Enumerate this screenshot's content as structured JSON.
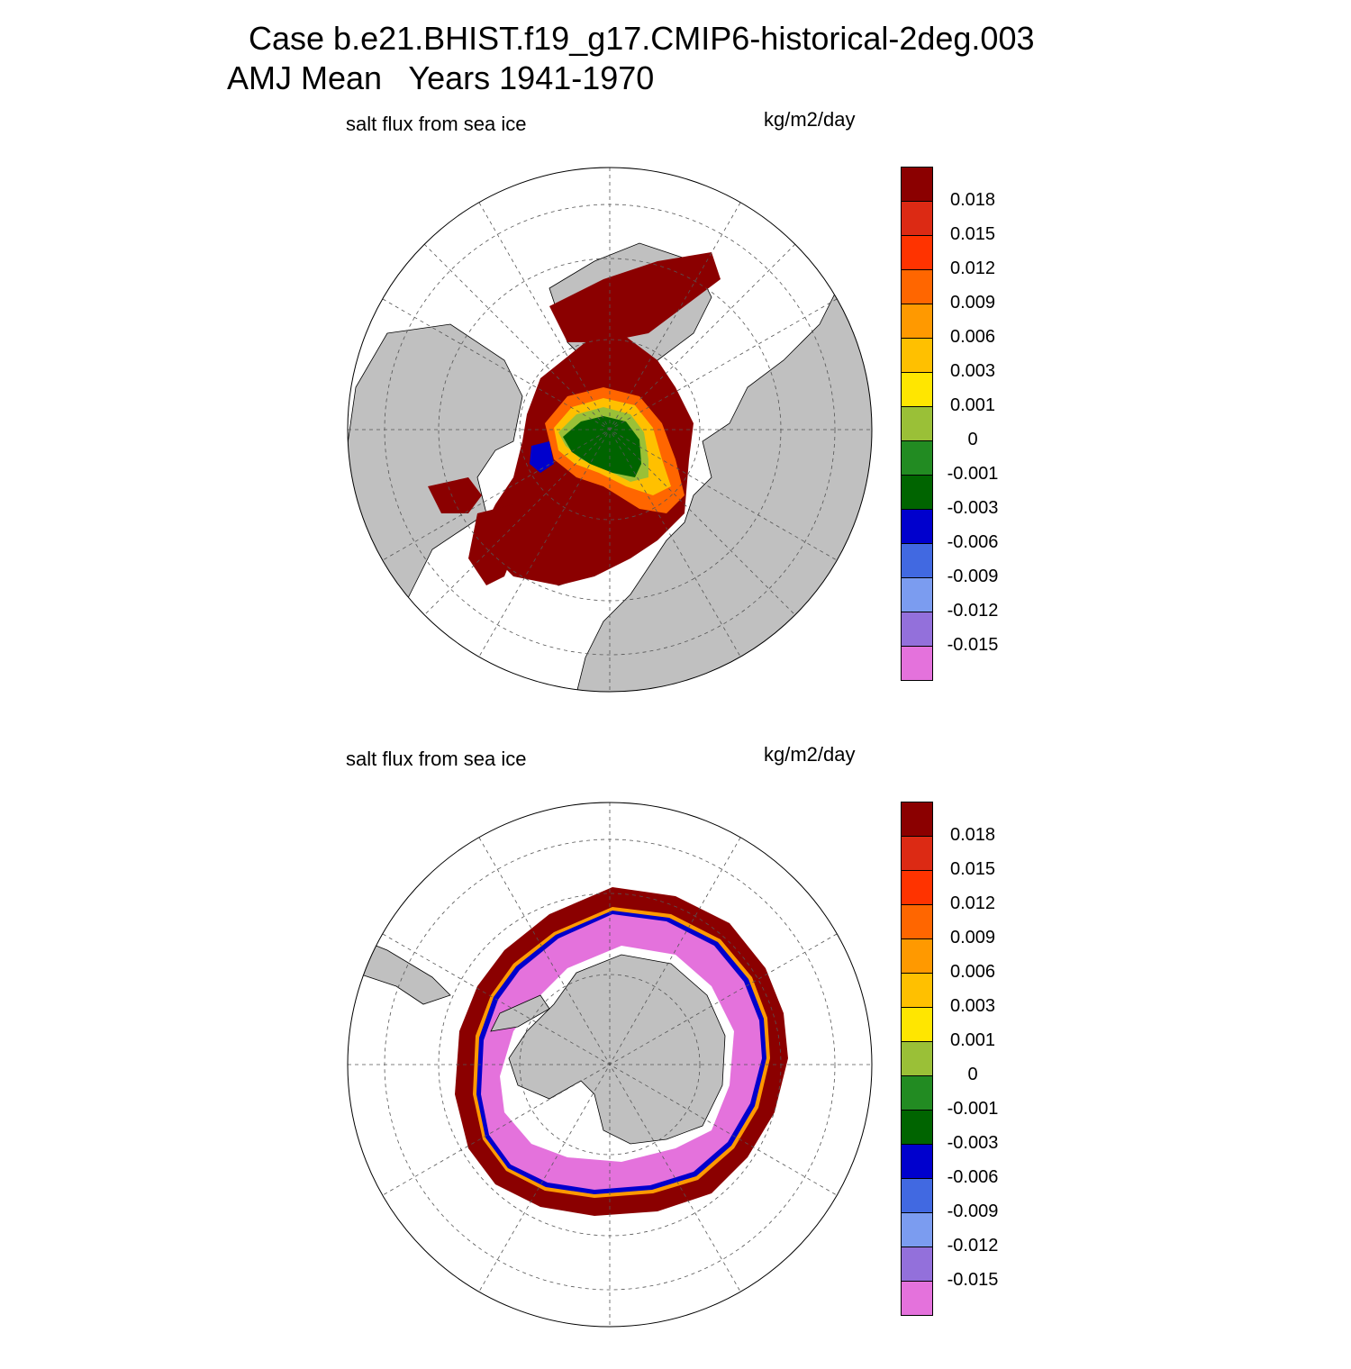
{
  "title": {
    "line1": "Case b.e21.BHIST.f19_g17.CMIP6-historical-2deg.003",
    "line2": "AMJ Mean   Years 1941-1970"
  },
  "panels": [
    {
      "id": "north",
      "variable_label": "salt flux from sea ice",
      "units_label": "kg/m2/day",
      "hemisphere": "north"
    },
    {
      "id": "south",
      "variable_label": "salt flux from sea ice",
      "units_label": "kg/m2/day",
      "hemisphere": "south"
    }
  ],
  "colorbar": {
    "levels": [
      "0.018",
      "0.015",
      "0.012",
      "0.009",
      "0.006",
      "0.003",
      "0.001",
      "0",
      "-0.001",
      "-0.003",
      "-0.006",
      "-0.009",
      "-0.012",
      "-0.015"
    ],
    "colors": [
      "#8b0000",
      "#dc2a14",
      "#ff3300",
      "#ff6600",
      "#ff9900",
      "#ffc000",
      "#ffe600",
      "#9ac037",
      "#228b22",
      "#006400",
      "#0000cd",
      "#4169e1",
      "#7b9cf0",
      "#9370db",
      "#e472dc"
    ]
  },
  "colors": {
    "land": "#c0c0c0",
    "ocean": "#ffffff",
    "grid": "#555555"
  }
}
